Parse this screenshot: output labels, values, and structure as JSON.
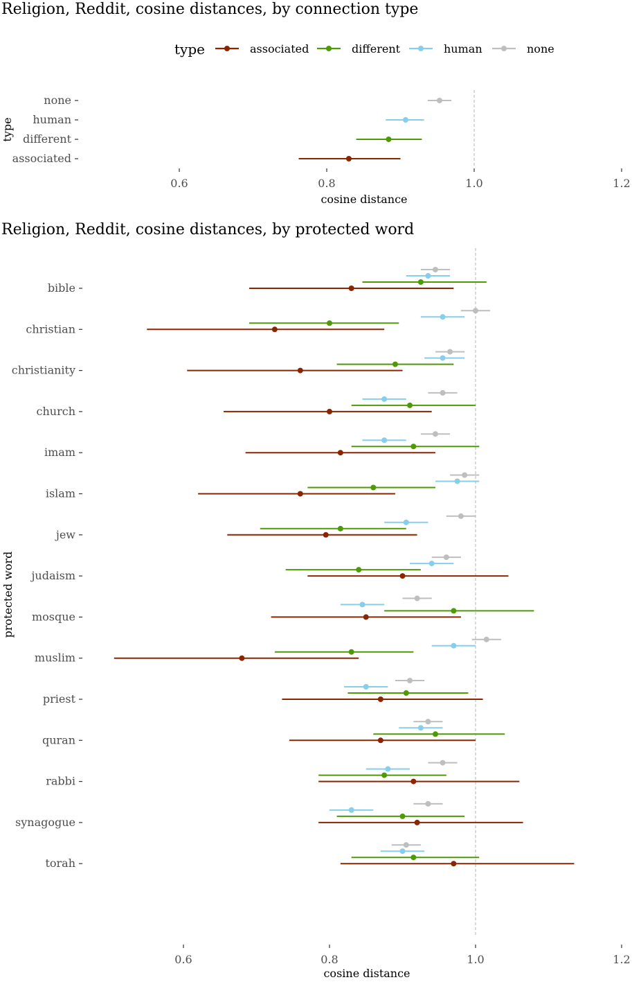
{
  "colors": {
    "associated": "#8B2500",
    "different": "#4E9A06",
    "human": "#87CEEB",
    "none": "#BEBEBE",
    "refline": "#B3B3B3",
    "tick": "#333333"
  },
  "legend": {
    "title": "type",
    "items": [
      "associated",
      "different",
      "human",
      "none"
    ]
  },
  "chart_data": [
    {
      "type": "scatter",
      "title": "Religion, Reddit,  cosine distances, by connection type",
      "xlabel": "cosine distance",
      "ylabel": "type",
      "xlim": [
        0.5,
        1.2
      ],
      "xticks": [
        "0.6",
        "0.8",
        "1.0",
        "1.2"
      ],
      "reference_line_x": 1.0,
      "categories": [
        "none",
        "human",
        "different",
        "associated"
      ],
      "rows": [
        {
          "category": "none",
          "type": "none",
          "mean": 0.953,
          "low": 0.937,
          "high": 0.969
        },
        {
          "category": "human",
          "type": "human",
          "mean": 0.907,
          "low": 0.88,
          "high": 0.932
        },
        {
          "category": "different",
          "type": "different",
          "mean": 0.884,
          "low": 0.84,
          "high": 0.929
        },
        {
          "category": "associated",
          "type": "associated",
          "mean": 0.83,
          "low": 0.762,
          "high": 0.9
        }
      ]
    },
    {
      "type": "scatter",
      "title": "Religion, Reddit, cosine distances, by protected word",
      "xlabel": "cosine distance",
      "ylabel": "protected word",
      "xlim": [
        0.5,
        1.2
      ],
      "xticks": [
        "0.6",
        "0.8",
        "1.0",
        "1.2"
      ],
      "reference_line_x": 1.0,
      "categories": [
        "bible",
        "christian",
        "christianity",
        "church",
        "imam",
        "islam",
        "jew",
        "judaism",
        "mosque",
        "muslim",
        "priest",
        "quran",
        "rabbi",
        "synagogue",
        "torah"
      ],
      "series": [
        {
          "name": "associated",
          "values": [
            {
              "word": "bible",
              "mean": 0.83,
              "low": 0.69,
              "high": 0.97
            },
            {
              "word": "christian",
              "mean": 0.725,
              "low": 0.55,
              "high": 0.875
            },
            {
              "word": "christianity",
              "mean": 0.76,
              "low": 0.605,
              "high": 0.9
            },
            {
              "word": "church",
              "mean": 0.8,
              "low": 0.655,
              "high": 0.94
            },
            {
              "word": "imam",
              "mean": 0.815,
              "low": 0.685,
              "high": 0.945
            },
            {
              "word": "islam",
              "mean": 0.76,
              "low": 0.62,
              "high": 0.89
            },
            {
              "word": "jew",
              "mean": 0.795,
              "low": 0.66,
              "high": 0.92
            },
            {
              "word": "judaism",
              "mean": 0.9,
              "low": 0.77,
              "high": 1.045
            },
            {
              "word": "mosque",
              "mean": 0.85,
              "low": 0.72,
              "high": 0.98
            },
            {
              "word": "muslim",
              "mean": 0.68,
              "low": 0.505,
              "high": 0.84
            },
            {
              "word": "priest",
              "mean": 0.87,
              "low": 0.735,
              "high": 1.01
            },
            {
              "word": "quran",
              "mean": 0.87,
              "low": 0.745,
              "high": 1.0
            },
            {
              "word": "rabbi",
              "mean": 0.915,
              "low": 0.785,
              "high": 1.06
            },
            {
              "word": "synagogue",
              "mean": 0.92,
              "low": 0.785,
              "high": 1.065
            },
            {
              "word": "torah",
              "mean": 0.97,
              "low": 0.815,
              "high": 1.135
            }
          ]
        },
        {
          "name": "different",
          "values": [
            {
              "word": "bible",
              "mean": 0.925,
              "low": 0.845,
              "high": 1.015
            },
            {
              "word": "christian",
              "mean": 0.8,
              "low": 0.69,
              "high": 0.895
            },
            {
              "word": "christianity",
              "mean": 0.89,
              "low": 0.81,
              "high": 0.97
            },
            {
              "word": "church",
              "mean": 0.91,
              "low": 0.83,
              "high": 1.0
            },
            {
              "word": "imam",
              "mean": 0.915,
              "low": 0.83,
              "high": 1.005
            },
            {
              "word": "islam",
              "mean": 0.86,
              "low": 0.77,
              "high": 0.945
            },
            {
              "word": "jew",
              "mean": 0.815,
              "low": 0.705,
              "high": 0.905
            },
            {
              "word": "judaism",
              "mean": 0.84,
              "low": 0.74,
              "high": 0.925
            },
            {
              "word": "mosque",
              "mean": 0.97,
              "low": 0.875,
              "high": 1.08
            },
            {
              "word": "muslim",
              "mean": 0.83,
              "low": 0.725,
              "high": 0.915
            },
            {
              "word": "priest",
              "mean": 0.905,
              "low": 0.825,
              "high": 0.99
            },
            {
              "word": "quran",
              "mean": 0.945,
              "low": 0.86,
              "high": 1.04
            },
            {
              "word": "rabbi",
              "mean": 0.875,
              "low": 0.785,
              "high": 0.96
            },
            {
              "word": "synagogue",
              "mean": 0.9,
              "low": 0.81,
              "high": 0.985
            },
            {
              "word": "torah",
              "mean": 0.915,
              "low": 0.83,
              "high": 1.005
            }
          ]
        },
        {
          "name": "human",
          "values": [
            {
              "word": "bible",
              "mean": 0.935,
              "low": 0.905,
              "high": 0.965
            },
            {
              "word": "christian",
              "mean": 0.955,
              "low": 0.925,
              "high": 0.985
            },
            {
              "word": "christianity",
              "mean": 0.955,
              "low": 0.93,
              "high": 0.985
            },
            {
              "word": "church",
              "mean": 0.875,
              "low": 0.845,
              "high": 0.905
            },
            {
              "word": "imam",
              "mean": 0.875,
              "low": 0.845,
              "high": 0.905
            },
            {
              "word": "islam",
              "mean": 0.975,
              "low": 0.945,
              "high": 1.005
            },
            {
              "word": "jew",
              "mean": 0.905,
              "low": 0.875,
              "high": 0.935
            },
            {
              "word": "judaism",
              "mean": 0.94,
              "low": 0.91,
              "high": 0.97
            },
            {
              "word": "mosque",
              "mean": 0.845,
              "low": 0.815,
              "high": 0.875
            },
            {
              "word": "muslim",
              "mean": 0.97,
              "low": 0.94,
              "high": 1.0
            },
            {
              "word": "priest",
              "mean": 0.85,
              "low": 0.82,
              "high": 0.88
            },
            {
              "word": "quran",
              "mean": 0.925,
              "low": 0.895,
              "high": 0.955
            },
            {
              "word": "rabbi",
              "mean": 0.88,
              "low": 0.85,
              "high": 0.91
            },
            {
              "word": "synagogue",
              "mean": 0.83,
              "low": 0.8,
              "high": 0.86
            },
            {
              "word": "torah",
              "mean": 0.9,
              "low": 0.87,
              "high": 0.93
            }
          ]
        },
        {
          "name": "none",
          "values": [
            {
              "word": "bible",
              "mean": 0.945,
              "low": 0.925,
              "high": 0.965
            },
            {
              "word": "christian",
              "mean": 1.0,
              "low": 0.98,
              "high": 1.02
            },
            {
              "word": "christianity",
              "mean": 0.965,
              "low": 0.945,
              "high": 0.985
            },
            {
              "word": "church",
              "mean": 0.955,
              "low": 0.935,
              "high": 0.975
            },
            {
              "word": "imam",
              "mean": 0.945,
              "low": 0.925,
              "high": 0.965
            },
            {
              "word": "islam",
              "mean": 0.985,
              "low": 0.965,
              "high": 1.005
            },
            {
              "word": "jew",
              "mean": 0.98,
              "low": 0.96,
              "high": 1.0
            },
            {
              "word": "judaism",
              "mean": 0.96,
              "low": 0.94,
              "high": 0.98
            },
            {
              "word": "mosque",
              "mean": 0.92,
              "low": 0.9,
              "high": 0.94
            },
            {
              "word": "muslim",
              "mean": 1.015,
              "low": 0.995,
              "high": 1.035
            },
            {
              "word": "priest",
              "mean": 0.91,
              "low": 0.89,
              "high": 0.93
            },
            {
              "word": "quran",
              "mean": 0.935,
              "low": 0.915,
              "high": 0.955
            },
            {
              "word": "rabbi",
              "mean": 0.955,
              "low": 0.935,
              "high": 0.975
            },
            {
              "word": "synagogue",
              "mean": 0.935,
              "low": 0.915,
              "high": 0.955
            },
            {
              "word": "torah",
              "mean": 0.905,
              "low": 0.885,
              "high": 0.925
            }
          ]
        }
      ]
    }
  ]
}
